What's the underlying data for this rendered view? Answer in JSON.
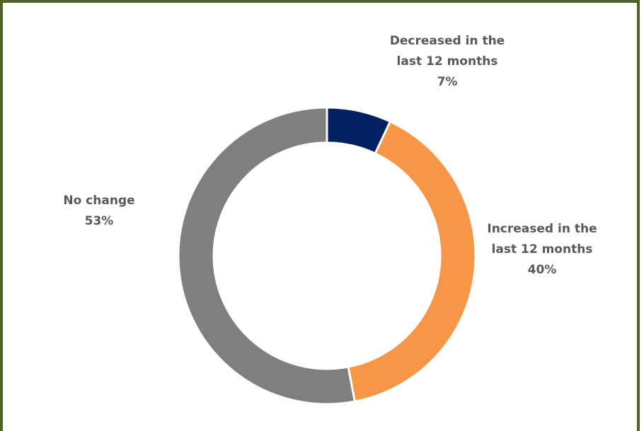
{
  "chart_data": {
    "type": "donut",
    "categories": [
      "Decreased in the last 12 months",
      "Increased in the last 12 months",
      "No change"
    ],
    "values": [
      7,
      40,
      53
    ],
    "value_labels": [
      "7%",
      "40%",
      "53%"
    ],
    "colors": [
      "#002060",
      "#f79646",
      "#7f7f7f"
    ]
  }
}
